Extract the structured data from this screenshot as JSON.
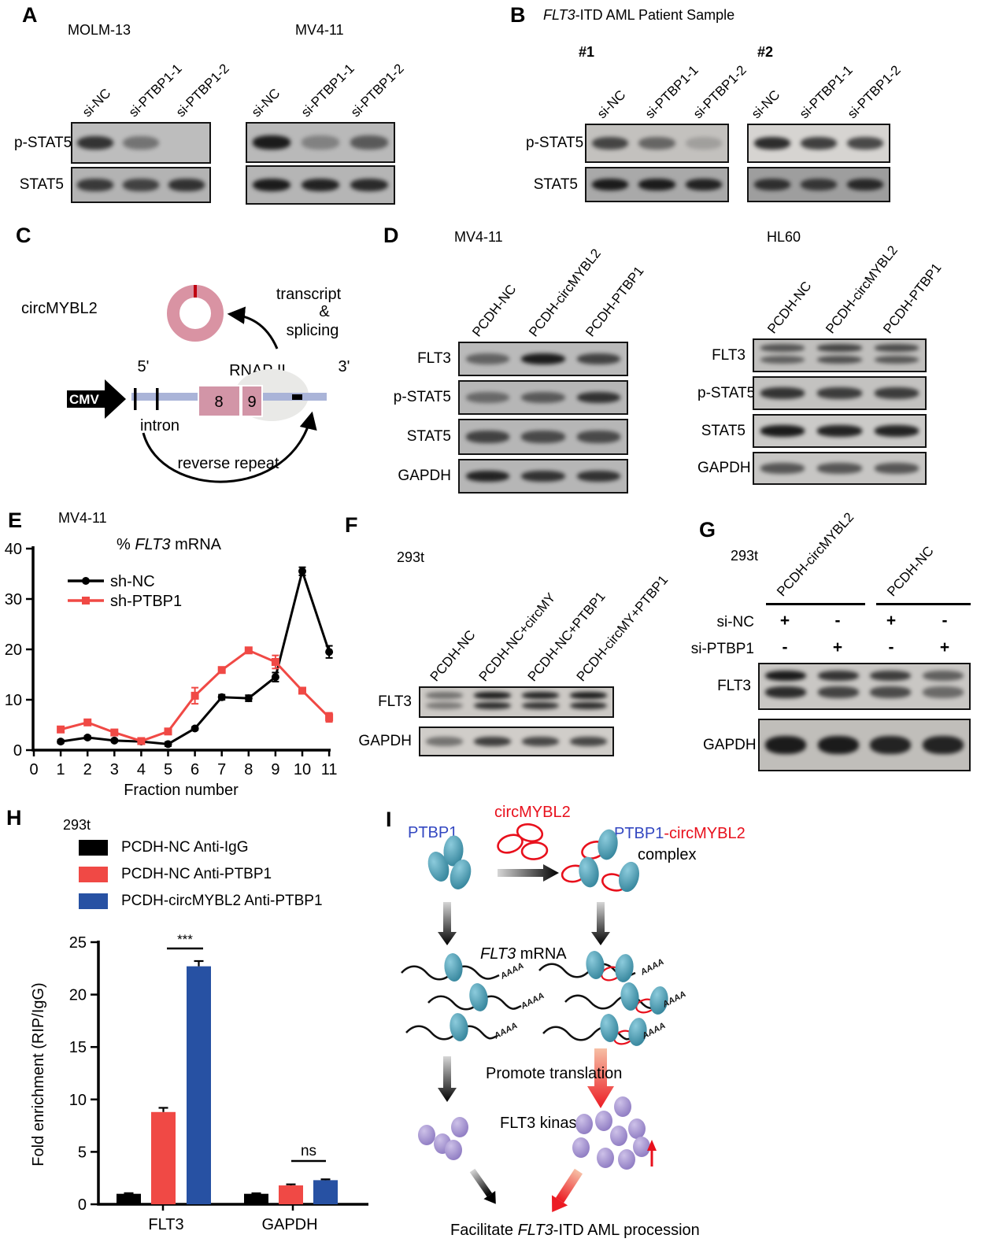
{
  "panel_labels": {
    "a": "A",
    "b": "B",
    "c": "C",
    "d": "D",
    "e": "E",
    "f": "F",
    "g": "G",
    "h": "H",
    "i": "I"
  },
  "panel_b": {
    "title_italic": "FLT3",
    "title_rest": "-ITD AML Patient Sample"
  },
  "blots": {
    "a1": {
      "title": "MOLM-13",
      "lanes": [
        "si-NC",
        "si-PTBP1-1",
        "si-PTBP1-2"
      ],
      "rows": [
        {
          "label": "p-STAT5",
          "bg": "#bdbdbd",
          "bands": [
            0.85,
            0.45,
            0
          ]
        },
        {
          "label": "STAT5",
          "bg": "#b3b3b3",
          "bands": [
            0.8,
            0.75,
            0.85
          ]
        }
      ]
    },
    "a2": {
      "title": "MV4-11",
      "lanes": [
        "si-NC",
        "si-PTBP1-1",
        "si-PTBP1-2"
      ],
      "rows": [
        {
          "label": "",
          "bg": "#b9b9b9",
          "bands": [
            1,
            0.35,
            0.6
          ]
        },
        {
          "label": "",
          "bg": "#b5b5b5",
          "bands": [
            1,
            0.95,
            0.9
          ]
        }
      ]
    },
    "b1": {
      "title": "#1",
      "lanes": [
        "si-NC",
        "si-PTBP1-1",
        "si-PTBP1-2"
      ],
      "rows": [
        {
          "label": "p-STAT5",
          "bg": "#c3c1be",
          "bands": [
            0.75,
            0.55,
            0.2
          ]
        },
        {
          "label": "STAT5",
          "bg": "#a9a9a9",
          "bands": [
            1,
            1,
            0.95
          ]
        }
      ]
    },
    "b2": {
      "title": "#2",
      "lanes": [
        "si-NC",
        "si-PTBP1-1",
        "si-PTBP1-2"
      ],
      "rows": [
        {
          "label": "",
          "bg": "#d6d4d1",
          "bands": [
            0.9,
            0.8,
            0.75
          ]
        },
        {
          "label": "",
          "bg": "#9e9e9e",
          "bands": [
            0.85,
            0.8,
            0.9
          ]
        }
      ]
    },
    "d1": {
      "title": "MV4-11",
      "lanes": [
        "PCDH-NC",
        "PCDH-circMYBL2",
        "PCDH-PTBP1"
      ],
      "rows": [
        {
          "label": "FLT3",
          "bg": "#bababa",
          "bands": [
            0.55,
            1,
            0.75
          ]
        },
        {
          "label": "p-STAT5",
          "bg": "#b6b6b6",
          "bands": [
            0.5,
            0.6,
            0.85
          ]
        },
        {
          "label": "STAT5",
          "bg": "#b6b6b6",
          "bands": [
            0.75,
            0.7,
            0.7
          ]
        },
        {
          "label": "GAPDH",
          "bg": "#b6b6b6",
          "bands": [
            0.95,
            0.85,
            0.85
          ]
        }
      ]
    },
    "d2": {
      "title": "HL60",
      "lanes": [
        "PCDH-NC",
        "PCDH-circMYBL2",
        "PCDH-PTBP1"
      ],
      "rows": [
        {
          "label": "FLT3",
          "bg": "#c0bfbd",
          "double": true,
          "bands": [
            0.65,
            0.75,
            0.7
          ]
        },
        {
          "label": "p-STAT5",
          "bg": "#c3c2c0",
          "bands": [
            0.85,
            0.8,
            0.8
          ]
        },
        {
          "label": "STAT5",
          "bg": "#cbcac8",
          "bands": [
            1,
            0.95,
            0.95
          ]
        },
        {
          "label": "GAPDH",
          "bg": "#c7c6c4",
          "bands": [
            0.65,
            0.65,
            0.65
          ]
        }
      ]
    },
    "f": {
      "title": "293t",
      "lanes": [
        "PCDH-NC",
        "PCDH-NC+circMY",
        "PCDH-NC+PTBP1",
        "PCDH-circMY+PTBP1"
      ],
      "rows": [
        {
          "label": "FLT3",
          "bg": "#ccc9c5",
          "double": true,
          "bands": [
            0.5,
            1,
            0.95,
            1
          ]
        },
        {
          "label": "GAPDH",
          "bg": "#d0cdc9",
          "bands": [
            0.5,
            0.8,
            0.75,
            0.75
          ]
        }
      ]
    },
    "g": {
      "title": "293t",
      "lanes": [],
      "group_labels": [
        "PCDH-circMYBL2",
        "PCDH-NC"
      ],
      "si_rows": [
        {
          "label": "si-NC",
          "values": [
            "+",
            "-",
            "+",
            "-"
          ]
        },
        {
          "label": "si-PTBP1",
          "values": [
            "-",
            "+",
            "-",
            "+"
          ]
        }
      ],
      "rows": [
        {
          "label": "FLT3",
          "bg": "#c9c7c4",
          "double": true,
          "bands": [
            1,
            0.85,
            0.8,
            0.6
          ]
        },
        {
          "label": "GAPDH",
          "bg": "#c0beba",
          "bands": [
            1,
            1,
            0.95,
            0.95
          ]
        }
      ]
    }
  },
  "panel_c": {
    "name": "circMYBL2",
    "transcript": "transcript",
    "amp": "&",
    "splicing": "splicing",
    "five": "5'",
    "three": "3'",
    "rnap": "RNAP II",
    "cmv": "CMV",
    "intron": "intron",
    "exon8": "8",
    "exon9": "9",
    "reverse": "reverse repeat"
  },
  "panel_i": {
    "ptbp1": "PTBP1",
    "circ": "circMYBL2",
    "complex_1": "PTBP1",
    "complex_2": "-circMYBL2",
    "complex_3": "complex",
    "mrna_italic": "FLT3",
    "mrna_rest": " mRNA",
    "promote": "Promote translation",
    "kinase": "FLT3 kinase",
    "facilitate_1": "Facilitate ",
    "facilitate_2": "FLT3",
    "facilitate_3": "-ITD AML procession",
    "aaaa": "AAAA"
  },
  "colors": {
    "red": "#F04945",
    "blue_bar": "#2751A3",
    "teal": "#3E90A7",
    "purple": "#9282C4",
    "pink_ring": "#D993A3",
    "red_tick": "#C00010",
    "gene_line": "#AAB4D8",
    "exon": "#D295A7",
    "rnap_ellipse": "#E9E9E7",
    "blue_text": "#3347C1",
    "red_text": "#E8101C"
  },
  "chart_data": [
    {
      "id": "E",
      "type": "line",
      "cell_line": "MV4-11",
      "title": "% FLT3 mRNA",
      "title_parts": [
        {
          "t": "% ",
          "i": false
        },
        {
          "t": "FLT3",
          "i": true
        },
        {
          "t": " mRNA",
          "i": false
        }
      ],
      "xlabel": "Fraction number",
      "xticks": [
        0,
        1,
        2,
        3,
        4,
        5,
        6,
        7,
        8,
        9,
        10,
        11
      ],
      "yticks": [
        0,
        10,
        20,
        30,
        40
      ],
      "ylim": [
        0,
        40
      ],
      "x": [
        1,
        2,
        3,
        4,
        5,
        6,
        7,
        8,
        9,
        10,
        11
      ],
      "series": [
        {
          "name": "sh-NC",
          "color": "#000000",
          "marker": "circle",
          "values": [
            1.7,
            2.5,
            1.9,
            1.7,
            1.2,
            4.3,
            10.5,
            10.3,
            14.5,
            35.5,
            19.5
          ],
          "errors": [
            0.3,
            0.3,
            0.2,
            0.3,
            0.4,
            0.3,
            0.5,
            0.6,
            0.9,
            0.8,
            1.2
          ]
        },
        {
          "name": "sh-PTBP1",
          "color": "#F04945",
          "marker": "square",
          "values": [
            4.1,
            5.5,
            3.5,
            1.8,
            3.7,
            10.8,
            15.9,
            19.8,
            17.5,
            11.8,
            6.5
          ],
          "errors": [
            0.3,
            0.3,
            0.3,
            0.3,
            0.3,
            1.6,
            0.5,
            0.4,
            1.3,
            0.4,
            0.9
          ]
        }
      ],
      "legend_position": "upper-left",
      "grid": false
    },
    {
      "id": "H",
      "type": "bar",
      "cell_line": "293t",
      "ylabel": "Fold enrichment (RIP/IgG)",
      "ylim": [
        0,
        25
      ],
      "yticks": [
        0,
        5,
        10,
        15,
        20,
        25
      ],
      "categories": [
        "FLT3",
        "GAPDH"
      ],
      "series": [
        {
          "name": "PCDH-NC Anti-IgG",
          "color": "#000000",
          "values": [
            1.0,
            1.0
          ],
          "errors": [
            0.06,
            0.05
          ]
        },
        {
          "name": "PCDH-NC Anti-PTBP1",
          "color": "#F04945",
          "values": [
            8.8,
            1.8
          ],
          "errors": [
            0.4,
            0.1
          ]
        },
        {
          "name": "PCDH-circMYBL2 Anti-PTBP1",
          "color": "#2751A3",
          "values": [
            22.7,
            2.3
          ],
          "errors": [
            0.5,
            0.08
          ]
        }
      ],
      "annotations": [
        {
          "text": "***",
          "category": "FLT3"
        },
        {
          "text": "ns",
          "category": "GAPDH"
        }
      ],
      "grid": false
    }
  ]
}
